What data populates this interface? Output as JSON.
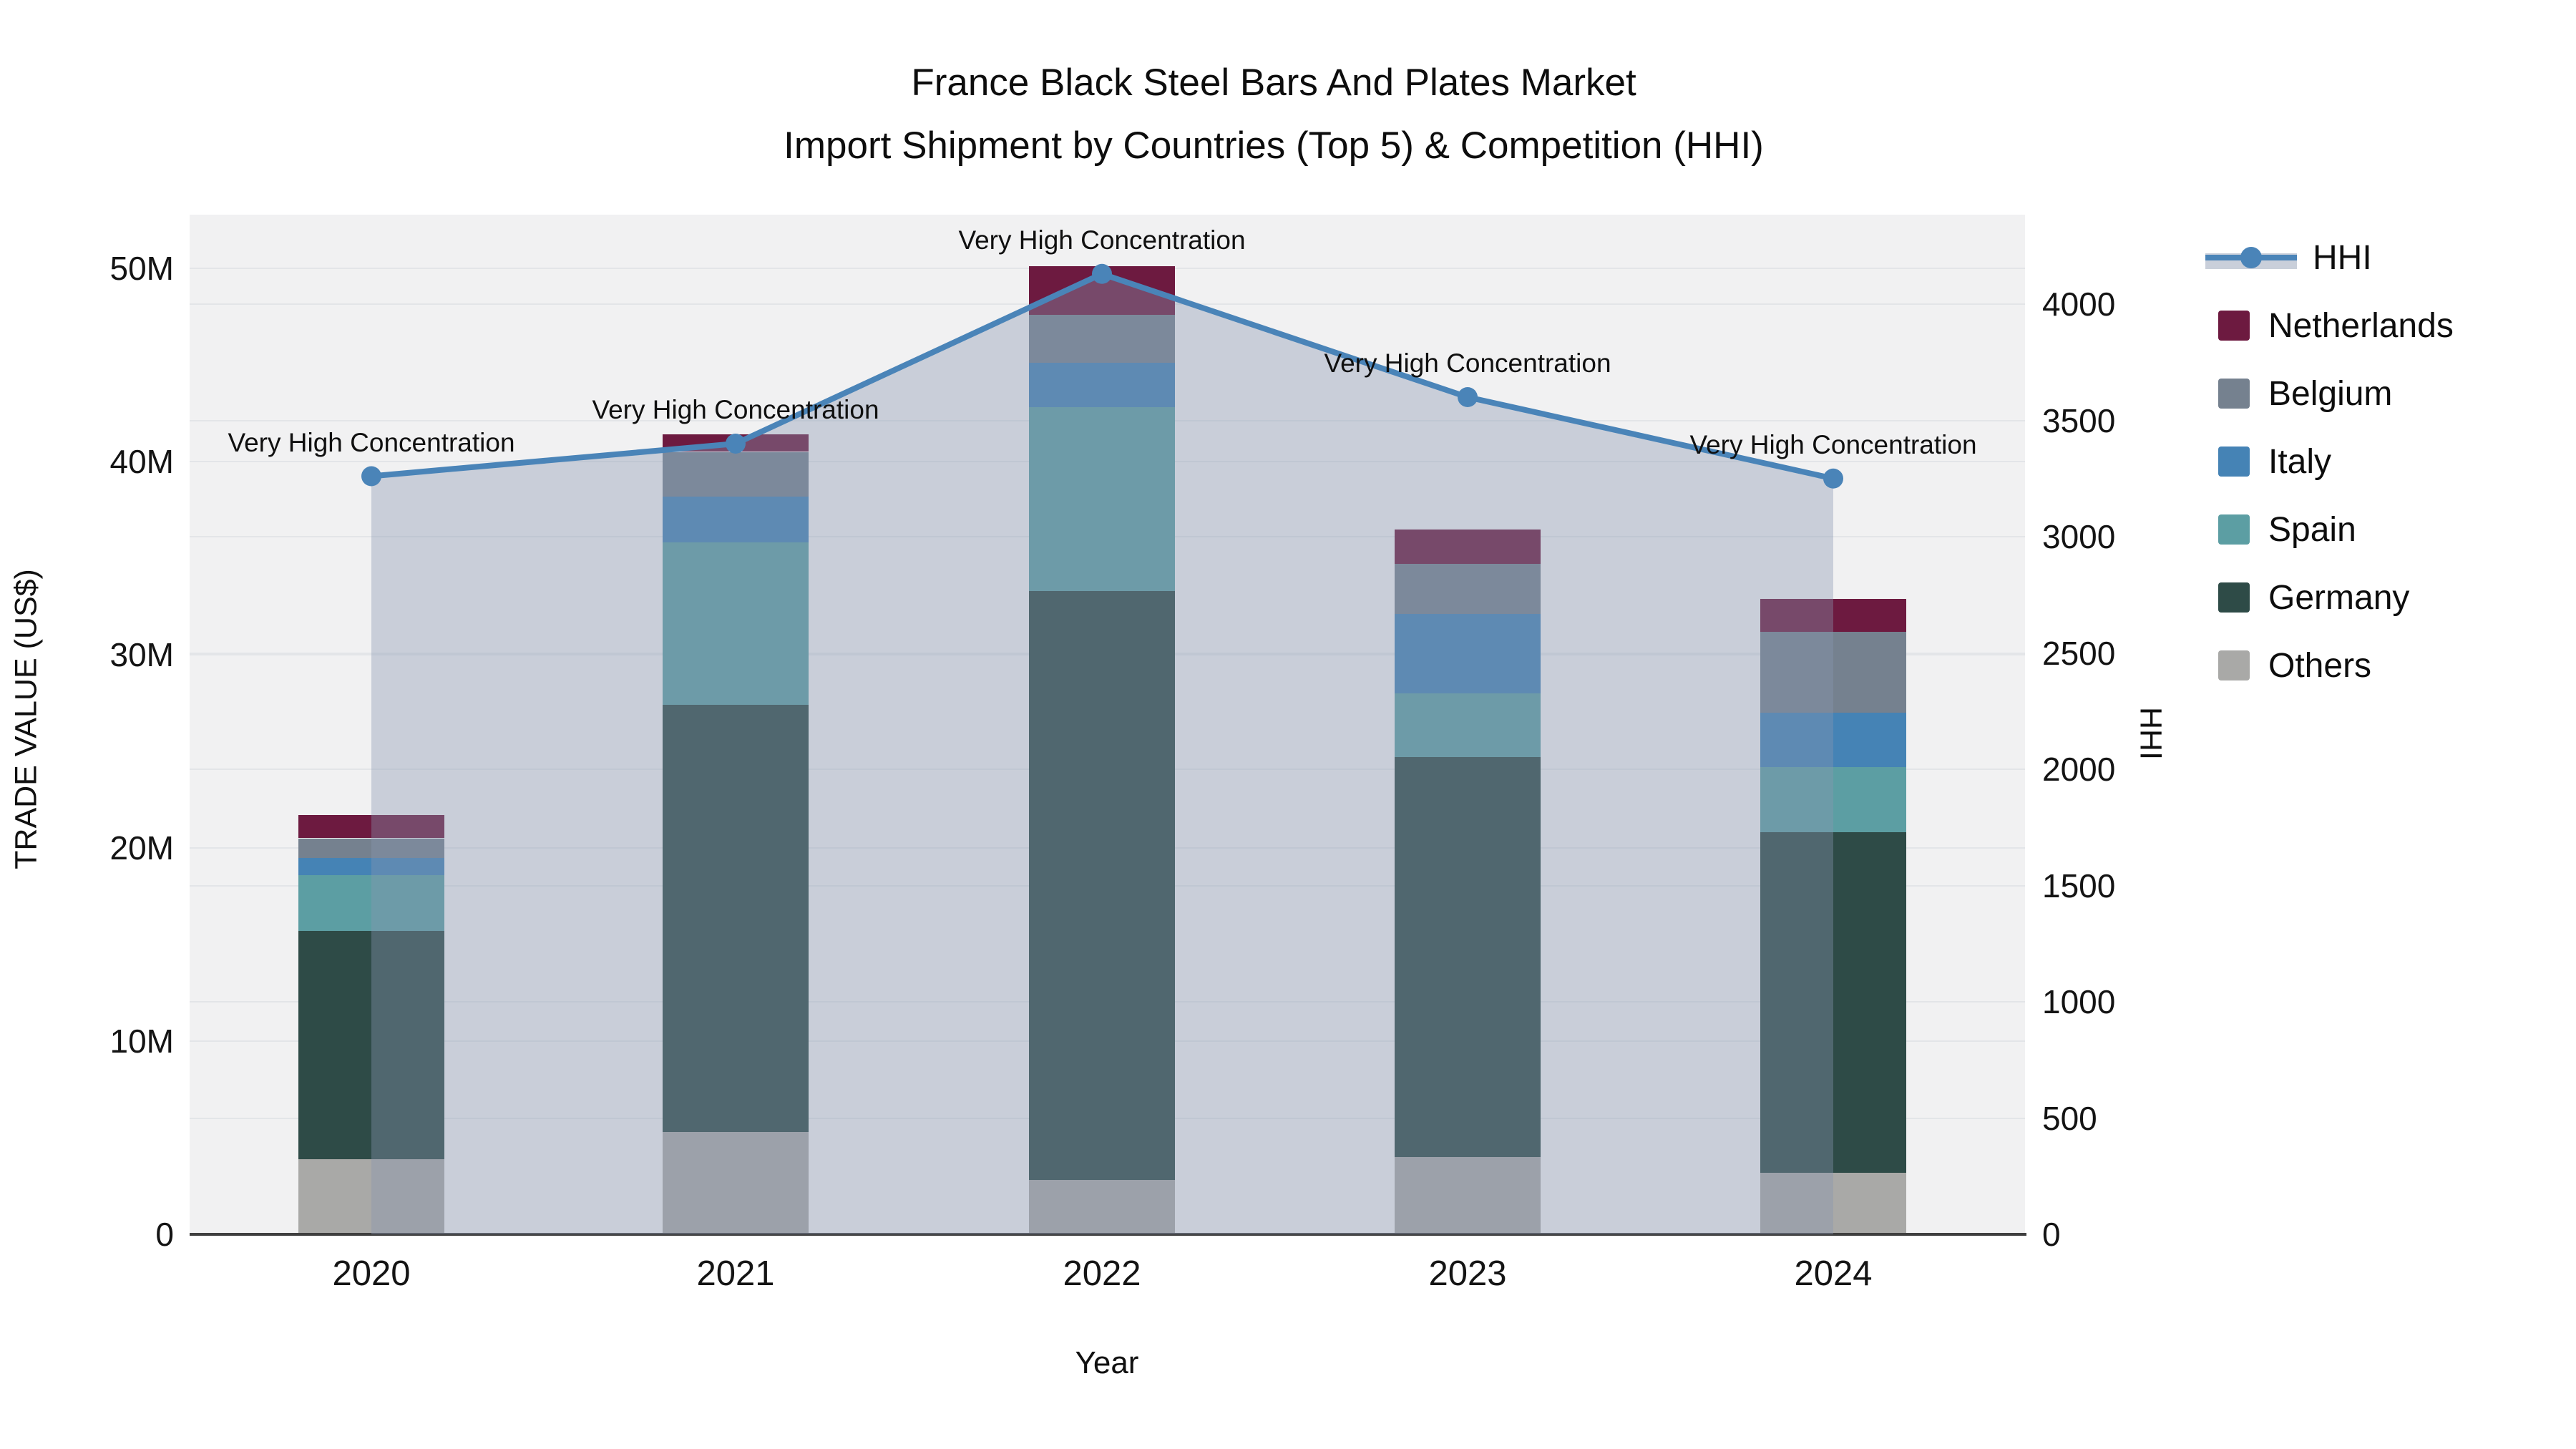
{
  "title": {
    "line1": "France Black Steel Bars And Plates Market",
    "line2": "Import Shipment by Countries (Top 5) & Competition (HHI)"
  },
  "left_axis_title": "TRADE VALUE (US$)",
  "right_axis_title": "HHI",
  "x_axis_title": "Year",
  "legend": {
    "position": "right",
    "items": [
      {
        "label": "HHI",
        "type": "line",
        "line_color": "#4A84B8",
        "band_color": "#C9CFDA",
        "icon": "line-marker-sample"
      },
      {
        "label": "Netherlands",
        "type": "swatch",
        "color": "#6D1A40"
      },
      {
        "label": "Belgium",
        "type": "swatch",
        "color": "#75818F"
      },
      {
        "label": "Italy",
        "type": "swatch",
        "color": "#4583B5"
      },
      {
        "label": "Spain",
        "type": "swatch",
        "color": "#5C9EA3"
      },
      {
        "label": "Germany",
        "type": "swatch",
        "color": "#2E4B47"
      },
      {
        "label": "Others",
        "type": "swatch",
        "color": "#A9A9A7"
      }
    ]
  },
  "chart_data": {
    "type": "combo (stacked bar + line on secondary axis)",
    "title": "France Black Steel Bars And Plates Market — Import Shipment by Countries (Top 5) & Competition (HHI)",
    "categories": [
      "2020",
      "2021",
      "2022",
      "2023",
      "2024"
    ],
    "bar_unit": "million US$",
    "series": [
      {
        "name": "Others",
        "color": "#A9A9A7",
        "values": [
          3.9,
          5.3,
          2.8,
          4.0,
          3.2
        ]
      },
      {
        "name": "Germany",
        "color": "#2E4B47",
        "values": [
          11.8,
          22.1,
          30.5,
          20.7,
          17.6
        ]
      },
      {
        "name": "Spain",
        "color": "#5C9EA3",
        "values": [
          2.9,
          8.4,
          9.5,
          3.3,
          3.4
        ]
      },
      {
        "name": "Italy",
        "color": "#4583B5",
        "values": [
          0.9,
          2.4,
          2.3,
          4.1,
          2.8
        ]
      },
      {
        "name": "Belgium",
        "color": "#75818F",
        "values": [
          1.0,
          2.3,
          2.5,
          2.6,
          4.2
        ]
      },
      {
        "name": "Netherlands",
        "color": "#6D1A40",
        "values": [
          1.2,
          0.9,
          2.5,
          1.8,
          1.7
        ]
      }
    ],
    "stack_totals_millions": [
      21.7,
      41.4,
      50.1,
      36.5,
      32.9
    ],
    "line_series": {
      "name": "HHI",
      "color": "#4A84B8",
      "area_fill_color": "rgba(136,150,176,0.38)",
      "values": [
        3260,
        3400,
        4130,
        3600,
        3250
      ]
    },
    "annotations": [
      {
        "text": "Very High Concentration"
      },
      {
        "text": "Very High Concentration"
      },
      {
        "text": "Very High Concentration"
      },
      {
        "text": "Very High Concentration"
      },
      {
        "text": "Very High Concentration"
      }
    ],
    "left_axis": {
      "title": "TRADE VALUE (US$)",
      "ticks": [
        {
          "label": "0",
          "value": 0
        },
        {
          "label": "10M",
          "value": 10
        },
        {
          "label": "20M",
          "value": 20
        },
        {
          "label": "30M",
          "value": 30
        },
        {
          "label": "40M",
          "value": 40
        },
        {
          "label": "50M",
          "value": 50
        }
      ],
      "range_millions": [
        0,
        52.8
      ]
    },
    "right_axis": {
      "title": "HHI",
      "ticks": [
        {
          "label": "0",
          "value": 0
        },
        {
          "label": "500",
          "value": 500
        },
        {
          "label": "1000",
          "value": 1000
        },
        {
          "label": "1500",
          "value": 1500
        },
        {
          "label": "2000",
          "value": 2000
        },
        {
          "label": "2500",
          "value": 2500
        },
        {
          "label": "3000",
          "value": 3000
        },
        {
          "label": "3500",
          "value": 3500
        },
        {
          "label": "4000",
          "value": 4000
        }
      ],
      "range": [
        0,
        4385
      ]
    },
    "xlabel": "Year",
    "ylabel": "TRADE VALUE (US$)",
    "grid": true,
    "legend_position": "right"
  }
}
